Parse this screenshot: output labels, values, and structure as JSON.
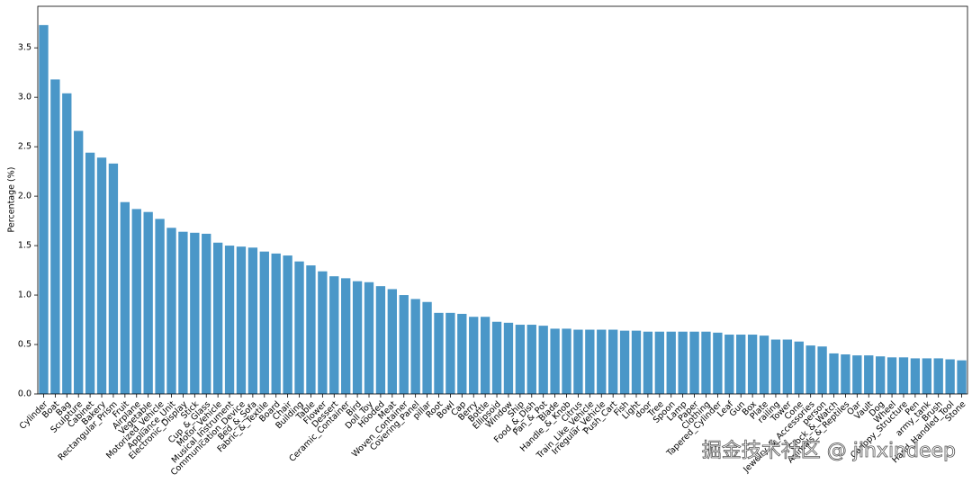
{
  "chart_data": {
    "type": "bar",
    "y_label": "Percentage (%)",
    "categories": [
      "Cylinder",
      "Boat",
      "Bag",
      "Sculpture",
      "Cabinet",
      "Bakery",
      "Rectangular_Prism",
      "Fruit",
      "Airplane",
      "Vegetable",
      "Motorized_Vehicle",
      "Appliance_Unit",
      "Electronic_Display",
      "Stick",
      "Cup_&_Glass",
      "Motor_Vehicle",
      "Musical_Instrument",
      "Communication_Device",
      "Bed_&_Sofa",
      "Fabric_&_Textile",
      "Board",
      "Chair",
      "Building",
      "Table",
      "Flower",
      "Dessert",
      "Ceramic_Container",
      "Bird",
      "Doll_Toy",
      "Hooded",
      "Meat",
      "Woven_Container",
      "Covering_Panel",
      "pillar",
      "Root",
      "Bowl",
      "Cap",
      "Berry",
      "Bottle",
      "Ellipsoid",
      "Window",
      "Ship",
      "Food_&_Dish",
      "Pan_&_Pot",
      "Blade",
      "Handle_&_Knob",
      "Citrus",
      "Train_Like_Vehicle",
      "Irregular_Vehicle",
      "Push_Cart",
      "Fish",
      "Light",
      "door",
      "Tree",
      "Spoon",
      "Lamp",
      "Paper",
      "Clothing",
      "Tapered_Cylinder",
      "Leaf",
      "Gun",
      "Box",
      "Plate",
      "railing",
      "Tower",
      "Cone",
      "Jewelry_&_Accessories",
      "person",
      "Clock_&_Watch",
      "Animals_&_Reptiles",
      "Oar",
      "Vault",
      "Dog",
      "Wheel",
      "Canopy_Structure",
      "Pen",
      "army_tank",
      "Brush",
      "Hand_Handled_Tool",
      "Stone"
    ],
    "values": [
      3.73,
      3.18,
      3.04,
      2.66,
      2.44,
      2.39,
      2.33,
      1.94,
      1.87,
      1.84,
      1.77,
      1.68,
      1.64,
      1.63,
      1.62,
      1.53,
      1.5,
      1.49,
      1.48,
      1.44,
      1.42,
      1.4,
      1.34,
      1.3,
      1.24,
      1.19,
      1.17,
      1.14,
      1.13,
      1.09,
      1.06,
      1.0,
      0.96,
      0.93,
      0.82,
      0.82,
      0.81,
      0.78,
      0.78,
      0.73,
      0.72,
      0.7,
      0.7,
      0.69,
      0.66,
      0.66,
      0.65,
      0.65,
      0.65,
      0.65,
      0.64,
      0.64,
      0.63,
      0.63,
      0.63,
      0.63,
      0.63,
      0.63,
      0.62,
      0.6,
      0.6,
      0.6,
      0.59,
      0.55,
      0.55,
      0.53,
      0.49,
      0.48,
      0.41,
      0.4,
      0.39,
      0.39,
      0.38,
      0.37,
      0.37,
      0.36,
      0.36,
      0.36,
      0.35,
      0.34
    ],
    "color": "#4a97c8",
    "ylim": [
      0,
      3.92
    ],
    "yticks": [
      {
        "value": 0,
        "label": "0.0"
      },
      {
        "value": 0.5,
        "label": "0.5"
      },
      {
        "value": 1,
        "label": "1.0"
      },
      {
        "value": 1.5,
        "label": "1.5"
      },
      {
        "value": 2,
        "label": "2.0"
      },
      {
        "value": 2.5,
        "label": "2.5"
      },
      {
        "value": 3,
        "label": "3.0"
      },
      {
        "value": 3.5,
        "label": "3.5"
      }
    ],
    "grid": false
  },
  "watermark": "掘金技术社区 @ jinxindeep"
}
